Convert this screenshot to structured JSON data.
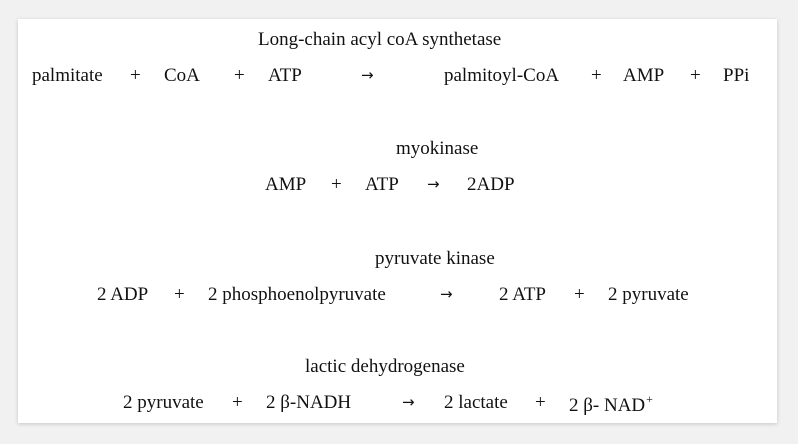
{
  "reactions": [
    {
      "enzyme": "Long-chain acyl coA synthetase",
      "reactants": [
        "palmitate",
        "CoA",
        "ATP"
      ],
      "products": [
        "palmitoyl-CoA",
        "AMP",
        "PPi"
      ]
    },
    {
      "enzyme": "myokinase",
      "reactants": [
        "AMP",
        "ATP"
      ],
      "products": [
        "2ADP"
      ]
    },
    {
      "enzyme": "pyruvate kinase",
      "reactants": [
        "2 ADP",
        "2 phosphoenolpyruvate"
      ],
      "products": [
        "2 ATP",
        "2 pyruvate"
      ]
    },
    {
      "enzyme": "lactic dehydrogenase",
      "reactants": [
        "2 pyruvate",
        "2 β-NADH"
      ],
      "products": [
        "2 lactate",
        "2 β- NAD"
      ],
      "last_product_superscript": "+"
    }
  ],
  "symbols": {
    "plus": "+",
    "arrow": "→"
  }
}
